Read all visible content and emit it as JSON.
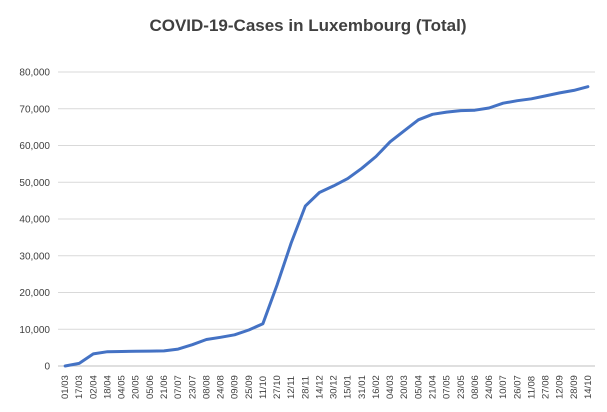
{
  "chart_data": {
    "type": "line",
    "title": "COVID-19-Cases in Luxembourg (Total)",
    "xlabel": "",
    "ylabel": "",
    "ylim": [
      0,
      80000
    ],
    "yticks": [
      "0",
      "10,000",
      "20,000",
      "30,000",
      "40,000",
      "50,000",
      "60,000",
      "70,000",
      "80,000"
    ],
    "grid": "horizontal",
    "legend": "none",
    "line_color": "#4472C4",
    "x": [
      "01/03",
      "17/03",
      "02/04",
      "18/04",
      "04/05",
      "20/05",
      "05/06",
      "21/06",
      "07/07",
      "23/07",
      "08/08",
      "24/08",
      "09/09",
      "25/09",
      "11/10",
      "27/10",
      "12/11",
      "28/11",
      "14/12",
      "30/12",
      "15/01",
      "31/01",
      "16/02",
      "04/03",
      "20/03",
      "05/04",
      "21/04",
      "07/05",
      "23/05",
      "08/06",
      "24/06",
      "10/07",
      "26/07",
      "11/08",
      "27/08",
      "12/09",
      "28/09",
      "14/10"
    ],
    "series": [
      {
        "values": [
          0,
          700,
          3300,
          3900,
          3950,
          4000,
          4050,
          4100,
          4600,
          5800,
          7200,
          7800,
          8500,
          9800,
          11500,
          22000,
          33500,
          43500,
          47200,
          49000,
          51000,
          53800,
          57000,
          61000,
          64000,
          67000,
          68500,
          69100,
          69500,
          69600,
          70200,
          71500,
          72200,
          72700,
          73500,
          74300,
          75000,
          76000
        ]
      }
    ]
  }
}
